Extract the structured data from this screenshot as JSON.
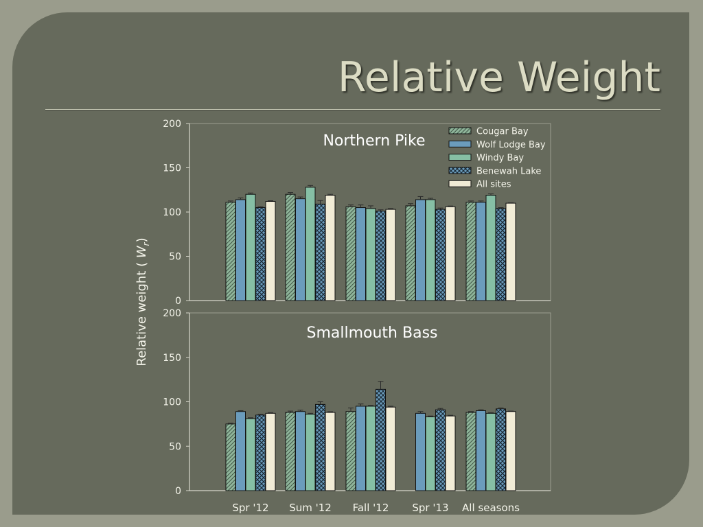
{
  "slide": {
    "title": "Relative Weight",
    "y_axis_label_prefix": "Relative weight ( ",
    "y_axis_label_symbol": "W",
    "y_axis_label_subscript": "r",
    "y_axis_label_suffix": ")"
  },
  "colors": {
    "background": "#9a9c8c",
    "panel": "#666a5c",
    "text": "#f4f4ea",
    "axis": "#d8d8cc",
    "bar_outline": "#111111"
  },
  "chart_data": [
    {
      "type": "bar",
      "title": "Northern Pike",
      "categories": [
        "Spr '12",
        "Sum '12",
        "Fall '12",
        "Spr '13",
        "All seasons"
      ],
      "ylim": [
        0,
        200
      ],
      "yticks": [
        0,
        50,
        100,
        150,
        200
      ],
      "legend": "top-right",
      "series": [
        {
          "name": "Cougar Bay",
          "color": "#8fb59a",
          "pattern": "hatch",
          "values": [
            111,
            120,
            106,
            107,
            111
          ],
          "errors": [
            1.5,
            2,
            2,
            2.5,
            1.5
          ]
        },
        {
          "name": "Wolf Lodge Bay",
          "color": "#6b9cbc",
          "pattern": "solid",
          "values": [
            114,
            115,
            105,
            114,
            111
          ],
          "errors": [
            2,
            2,
            3,
            3.5,
            1.5
          ]
        },
        {
          "name": "Windy Bay",
          "color": "#86bfa5",
          "pattern": "solid",
          "values": [
            120,
            128,
            104,
            114,
            119
          ],
          "errors": [
            1.5,
            2,
            3,
            1.5,
            1.5
          ]
        },
        {
          "name": "Benewah Lake",
          "color": "#6b9cbc",
          "pattern": "cross",
          "values": [
            105,
            109,
            101,
            103,
            104
          ],
          "errors": [
            1,
            4,
            1.5,
            1.5,
            1
          ]
        },
        {
          "name": "All sites",
          "color": "#f1ecd6",
          "pattern": "solid",
          "values": [
            112,
            119,
            103,
            106,
            110
          ],
          "errors": [
            0.8,
            1,
            1,
            0.8,
            0.5
          ]
        }
      ]
    },
    {
      "type": "bar",
      "title": "Smallmouth Bass",
      "categories": [
        "Spr '12",
        "Sum '12",
        "Fall '12",
        "Spr '13",
        "All seasons"
      ],
      "ylim": [
        0,
        200
      ],
      "yticks": [
        0,
        50,
        100,
        150,
        200
      ],
      "series": [
        {
          "name": "Cougar Bay",
          "color": "#8fb59a",
          "pattern": "hatch",
          "values": [
            75,
            88,
            89,
            null,
            88
          ],
          "errors": [
            1,
            1.5,
            4,
            null,
            1
          ]
        },
        {
          "name": "Wolf Lodge Bay",
          "color": "#6b9cbc",
          "pattern": "solid",
          "values": [
            89,
            89,
            95,
            87,
            90
          ],
          "errors": [
            1,
            1.5,
            2.5,
            2,
            1
          ]
        },
        {
          "name": "Windy Bay",
          "color": "#86bfa5",
          "pattern": "solid",
          "values": [
            81,
            86,
            95,
            83,
            87
          ],
          "errors": [
            1,
            1,
            1,
            1,
            0.8
          ]
        },
        {
          "name": "Benewah Lake",
          "color": "#6b9cbc",
          "pattern": "cross",
          "values": [
            85,
            97,
            114,
            91,
            92
          ],
          "errors": [
            1,
            3,
            9,
            1.5,
            1
          ]
        },
        {
          "name": "All sites",
          "color": "#f1ecd6",
          "pattern": "solid",
          "values": [
            87,
            88,
            94,
            84,
            89
          ],
          "errors": [
            0.8,
            0.8,
            1,
            0.8,
            0.5
          ]
        }
      ]
    }
  ]
}
